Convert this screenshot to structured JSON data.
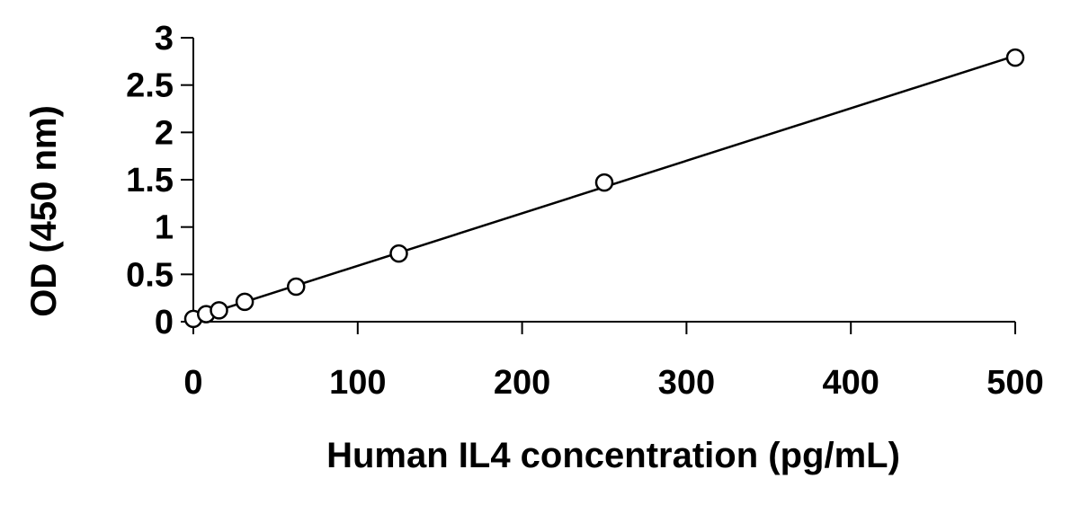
{
  "chart_data": {
    "type": "scatter",
    "title": "",
    "xlabel": "Human IL4 concentration (pg/mL)",
    "ylabel": "OD (450 nm)",
    "xlim": [
      0,
      500
    ],
    "ylim": [
      0,
      3
    ],
    "x_ticks": [
      "0",
      "100",
      "200",
      "300",
      "400",
      "500"
    ],
    "y_ticks": [
      "0",
      "0.5",
      "1",
      "1.5",
      "2",
      "2.5",
      "3"
    ],
    "grid": false,
    "legend": "none",
    "series": [
      {
        "x": [
          0,
          7.8,
          15.6,
          31.25,
          62.5,
          125,
          250,
          500
        ],
        "y": [
          0.03,
          0.08,
          0.12,
          0.21,
          0.37,
          0.72,
          1.47,
          2.79
        ],
        "marker": "open-circle",
        "trendline": "linear",
        "color": "#000000"
      }
    ]
  }
}
